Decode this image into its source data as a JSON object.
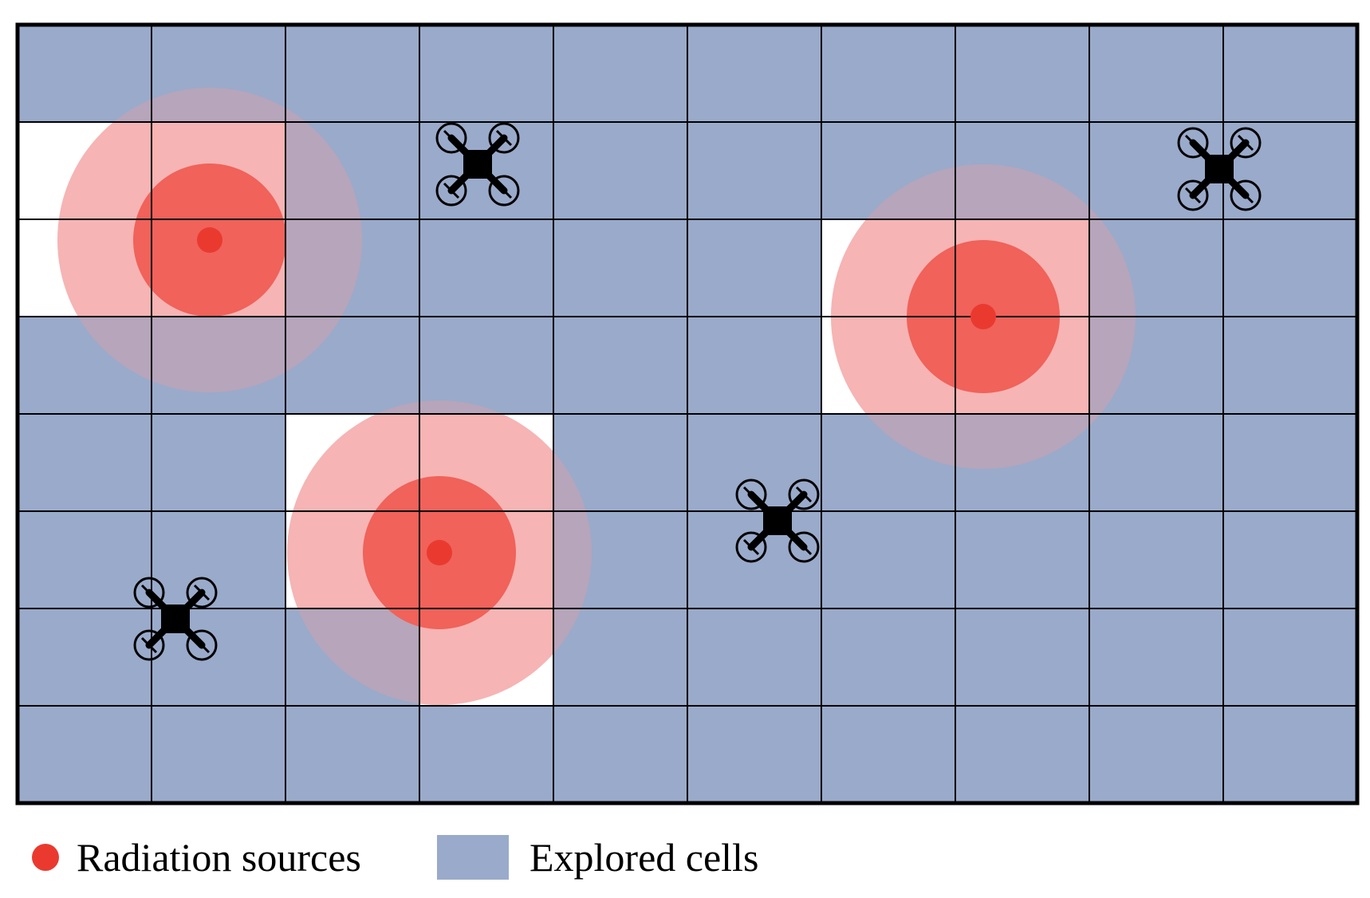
{
  "colors": {
    "explored": "#9aaaca",
    "unexplored": "#ffffff",
    "grid_line": "#000000",
    "outer_zone": "#f29a9a",
    "inner_zone": "#f0625a",
    "source": "#ea3a2f",
    "drone": "#000000"
  },
  "grid": {
    "columns": 10,
    "rows": 8,
    "unexplored_cells": [
      {
        "col": 0,
        "row": 1
      },
      {
        "col": 1,
        "row": 1
      },
      {
        "col": 0,
        "row": 2
      },
      {
        "col": 1,
        "row": 2
      },
      {
        "col": 6,
        "row": 2
      },
      {
        "col": 7,
        "row": 2
      },
      {
        "col": 6,
        "row": 3
      },
      {
        "col": 7,
        "row": 3
      },
      {
        "col": 2,
        "row": 4
      },
      {
        "col": 3,
        "row": 4
      },
      {
        "col": 2,
        "row": 5
      },
      {
        "col": 3,
        "row": 5
      },
      {
        "col": 3,
        "row": 6
      }
    ]
  },
  "sources": [
    {
      "id": "source-1"
    },
    {
      "id": "source-2"
    },
    {
      "id": "source-3"
    }
  ],
  "drones": [
    {
      "id": "drone-1"
    },
    {
      "id": "drone-2"
    },
    {
      "id": "drone-3"
    },
    {
      "id": "drone-4"
    }
  ],
  "legend": {
    "sources_label": "Radiation sources",
    "explored_label": "Explored cells"
  }
}
